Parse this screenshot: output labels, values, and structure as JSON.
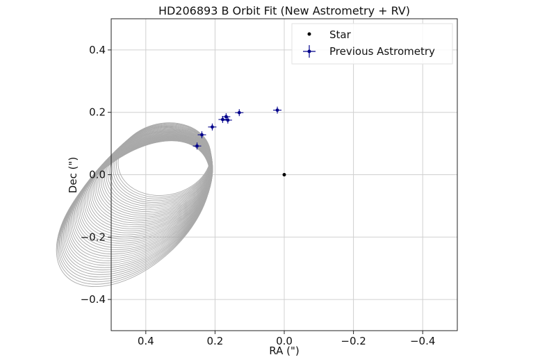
{
  "chart_data": {
    "type": "scatter",
    "title": "HD206893 B Orbit Fit (New Astrometry + RV)",
    "xlabel": "RA (\")",
    "ylabel": "Dec (\")",
    "xlim": [
      0.5,
      -0.5
    ],
    "ylim": [
      -0.5,
      0.5
    ],
    "x_ticks": [
      0.4,
      0.2,
      0.0,
      -0.2,
      -0.4
    ],
    "x_tick_labels": [
      "0.4",
      "0.2",
      "0.0",
      "−0.2",
      "−0.4"
    ],
    "y_ticks": [
      0.4,
      0.2,
      0.0,
      -0.2,
      -0.4
    ],
    "y_tick_labels": [
      "0.4",
      "0.2",
      "0.0",
      "−0.2",
      "−0.4"
    ],
    "grid": true,
    "legend_position": "top-right",
    "legend": [
      {
        "label": "Star",
        "marker": "dot"
      },
      {
        "label": "Previous Astrometry",
        "marker": "errorbar"
      }
    ],
    "star": {
      "x": 0.0,
      "y": 0.0
    },
    "astrometry": [
      {
        "x": 0.252,
        "y": 0.092
      },
      {
        "x": 0.238,
        "y": 0.128
      },
      {
        "x": 0.208,
        "y": 0.153
      },
      {
        "x": 0.178,
        "y": 0.177
      },
      {
        "x": 0.168,
        "y": 0.186
      },
      {
        "x": 0.163,
        "y": 0.175
      },
      {
        "x": 0.13,
        "y": 0.199
      },
      {
        "x": 0.02,
        "y": 0.207
      }
    ],
    "orbit_model": {
      "description_count": 45,
      "color": "#a9a9a9",
      "anchor_x": 0.25,
      "anchor_y": 0.092
    },
    "colors": {
      "star": "#000000",
      "astrometry": "#00008b",
      "orbits": "#a9a9a9",
      "grid": "#d0d0d0"
    }
  }
}
